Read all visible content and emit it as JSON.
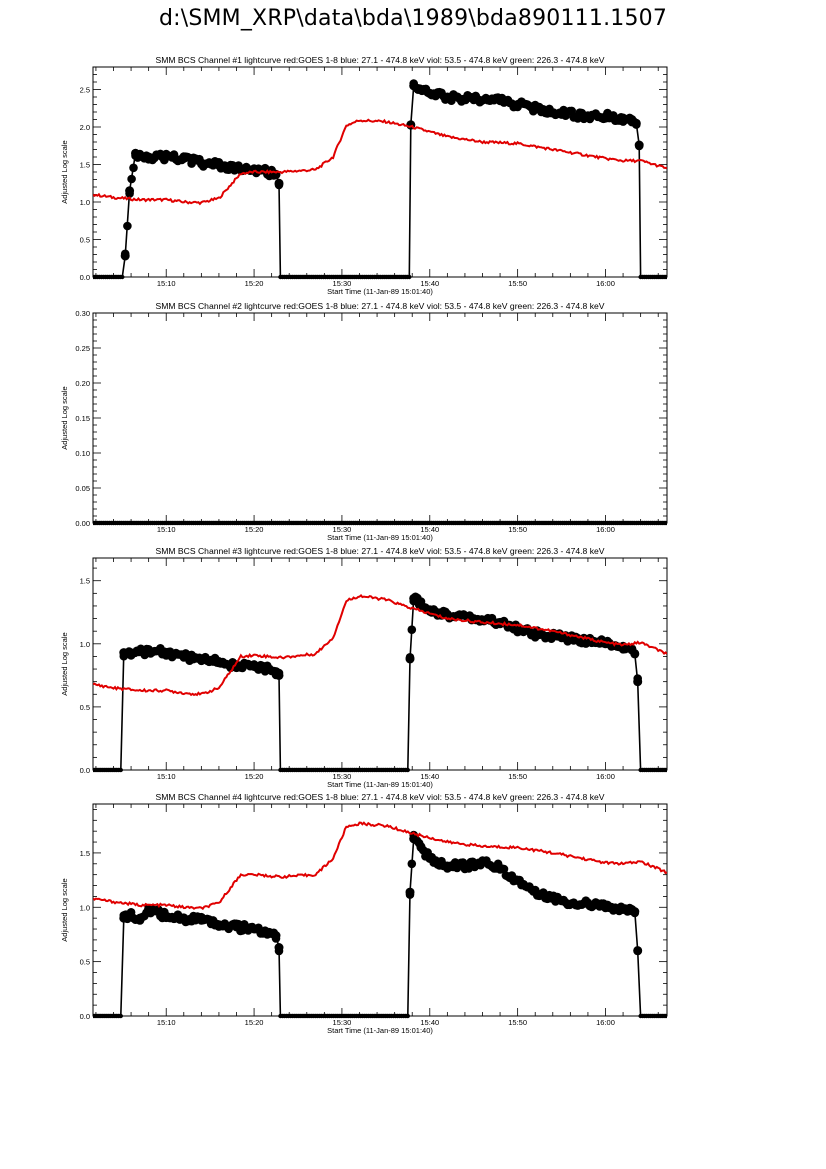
{
  "page_title": "d:\\SMM_XRP\\data\\bda\\1989\\bda890111.1507",
  "colors": {
    "goes": "#e00000",
    "bcs": "#000000"
  },
  "chart_data": [
    {
      "type": "line",
      "title": "SMM BCS Channel #1 lightcurve  red:GOES 1-8  blue: 27.1 - 474.8 keV  viol: 53.5 - 474.8 keV  green: 226.3 - 474.8 keV",
      "xlabel": "Start Time (11-Jan-89 15:01:40)",
      "ylabel": "Adjusted Log scale",
      "x_unit": "UT time",
      "xlim": [
        "15:01:40",
        "16:07:00"
      ],
      "ylim": [
        0,
        2.8
      ],
      "xticks": [
        "15:10",
        "15:20",
        "15:30",
        "15:40",
        "15:50",
        "16:00"
      ],
      "yticks": [
        0.0,
        0.5,
        1.0,
        1.5,
        2.0,
        2.5
      ],
      "ytick_labels": [
        "0.0",
        "0.5",
        "1.0",
        "1.5",
        "2.0",
        "2.5"
      ],
      "series": [
        {
          "color": "#000000",
          "style": "line+dots",
          "x": [
            "15:01:40",
            "15:05:00",
            "15:05:20",
            "15:05:50",
            "15:06:30",
            "15:07:00",
            "15:08:00",
            "15:10:00",
            "15:12:00",
            "15:14:00",
            "15:16:00",
            "15:18:00",
            "15:20:00",
            "15:21:30",
            "15:22:30",
            "15:22:50",
            "15:23:00",
            "15:30:00",
            "15:37:40",
            "15:37:50",
            "15:38:10",
            "15:38:40",
            "15:40:00",
            "15:42:00",
            "15:45:00",
            "15:48:00",
            "15:50:00",
            "15:52:00",
            "15:55:00",
            "15:58:00",
            "16:00:00",
            "16:02:00",
            "16:03:00",
            "16:03:30",
            "16:03:50",
            "16:04:00",
            "16:07:00"
          ],
          "y": [
            0,
            0,
            0.28,
            1.15,
            1.65,
            1.63,
            1.6,
            1.6,
            1.58,
            1.52,
            1.49,
            1.44,
            1.43,
            1.4,
            1.37,
            1.25,
            0,
            0,
            0,
            2.03,
            2.55,
            2.5,
            2.45,
            2.4,
            2.38,
            2.35,
            2.3,
            2.25,
            2.18,
            2.15,
            2.14,
            2.12,
            2.1,
            2.05,
            1.76,
            0,
            0
          ]
        },
        {
          "color": "#e00000",
          "style": "line",
          "x": [
            "15:01:40",
            "15:04:00",
            "15:07:00",
            "15:10:00",
            "15:12:00",
            "15:14:00",
            "15:16:00",
            "15:17:30",
            "15:18:30",
            "15:20:00",
            "15:23:00",
            "15:27:00",
            "15:29:00",
            "15:30:30",
            "15:32:00",
            "15:35:00",
            "15:38:00",
            "15:42:00",
            "15:46:00",
            "15:50:00",
            "15:54:00",
            "15:58:00",
            "16:00:00",
            "16:02:00",
            "16:04:00",
            "16:07:00"
          ],
          "y": [
            1.1,
            1.06,
            1.03,
            1.03,
            1.0,
            0.99,
            1.05,
            1.25,
            1.38,
            1.4,
            1.4,
            1.43,
            1.6,
            2.02,
            2.09,
            2.07,
            2.0,
            1.87,
            1.8,
            1.78,
            1.7,
            1.62,
            1.58,
            1.55,
            1.55,
            1.45
          ]
        }
      ]
    },
    {
      "type": "line",
      "title": "SMM BCS Channel #2 lightcurve  red:GOES 1-8  blue: 27.1 - 474.8 keV  viol: 53.5 - 474.8 keV  green: 226.3 - 474.8 keV",
      "xlabel": "Start Time (11-Jan-89 15:01:40)",
      "ylabel": "Adjusted Log scale",
      "x_unit": "UT time",
      "xlim": [
        "15:01:40",
        "16:07:00"
      ],
      "ylim": [
        0,
        0.3
      ],
      "xticks": [
        "15:10",
        "15:20",
        "15:30",
        "15:40",
        "15:50",
        "16:00"
      ],
      "yticks": [
        0.0,
        0.05,
        0.1,
        0.15,
        0.2,
        0.25,
        0.3
      ],
      "ytick_labels": [
        "0.00",
        "0.05",
        "0.10",
        "0.15",
        "0.20",
        "0.25",
        "0.30"
      ],
      "series": [
        {
          "color": "#000000",
          "style": "line+dots",
          "x": [
            "15:01:40",
            "16:07:00"
          ],
          "y": [
            0,
            0
          ]
        }
      ]
    },
    {
      "type": "line",
      "title": "SMM BCS Channel #3 lightcurve  red:GOES 1-8  blue: 27.1 - 474.8 keV  viol: 53.5 - 474.8 keV  green: 226.3 - 474.8 keV",
      "xlabel": "Start Time (11-Jan-89 15:01:40)",
      "ylabel": "Adjusted Log scale",
      "x_unit": "UT time",
      "xlim": [
        "15:01:40",
        "16:07:00"
      ],
      "ylim": [
        0,
        1.68
      ],
      "xticks": [
        "15:10",
        "15:20",
        "15:30",
        "15:40",
        "15:50",
        "16:00"
      ],
      "yticks": [
        0.0,
        0.5,
        1.0,
        1.5
      ],
      "ytick_labels": [
        "0.0",
        "0.5",
        "1.0",
        "1.5"
      ],
      "series": [
        {
          "color": "#000000",
          "style": "line+dots",
          "x": [
            "15:01:40",
            "15:04:50",
            "15:05:10",
            "15:06:00",
            "15:08:00",
            "15:10:00",
            "15:12:00",
            "15:14:00",
            "15:16:00",
            "15:18:00",
            "15:20:00",
            "15:21:30",
            "15:22:30",
            "15:22:50",
            "15:23:00",
            "15:30:00",
            "15:37:30",
            "15:37:45",
            "15:38:10",
            "15:39:00",
            "15:40:00",
            "15:42:00",
            "15:45:00",
            "15:48:00",
            "15:50:00",
            "15:52:00",
            "15:55:00",
            "15:58:00",
            "16:00:00",
            "16:02:00",
            "16:03:00",
            "16:03:20",
            "16:03:40",
            "16:04:00",
            "16:07:00"
          ],
          "y": [
            0,
            0,
            0.93,
            0.91,
            0.95,
            0.93,
            0.9,
            0.88,
            0.86,
            0.82,
            0.82,
            0.8,
            0.78,
            0.75,
            0,
            0,
            0,
            0.88,
            1.36,
            1.31,
            1.27,
            1.23,
            1.2,
            1.17,
            1.12,
            1.08,
            1.05,
            1.02,
            1.0,
            0.98,
            0.96,
            0.92,
            0.7,
            0,
            0
          ]
        },
        {
          "color": "#e00000",
          "style": "line",
          "x": [
            "15:01:40",
            "15:04:00",
            "15:07:00",
            "15:10:00",
            "15:12:00",
            "15:14:00",
            "15:16:00",
            "15:17:30",
            "15:18:30",
            "15:20:00",
            "15:23:00",
            "15:27:00",
            "15:29:00",
            "15:30:30",
            "15:32:00",
            "15:35:00",
            "15:38:00",
            "15:42:00",
            "15:46:00",
            "15:50:00",
            "15:54:00",
            "15:58:00",
            "16:00:00",
            "16:02:00",
            "16:04:00",
            "16:07:00"
          ],
          "y": [
            0.68,
            0.65,
            0.63,
            0.63,
            0.61,
            0.6,
            0.65,
            0.8,
            0.9,
            0.91,
            0.89,
            0.92,
            1.05,
            1.34,
            1.38,
            1.35,
            1.28,
            1.2,
            1.17,
            1.15,
            1.1,
            1.04,
            1.01,
            0.99,
            1.01,
            0.92
          ]
        }
      ]
    },
    {
      "type": "line",
      "title": "SMM BCS Channel #4 lightcurve  red:GOES 1-8  blue: 27.1 - 474.8 keV  viol: 53.5 - 474.8 keV  green: 226.3 - 474.8 keV",
      "xlabel": "Start Time (11-Jan-89 15:01:40)",
      "ylabel": "Adjusted Log scale",
      "x_unit": "UT time",
      "xlim": [
        "15:01:40",
        "16:07:00"
      ],
      "ylim": [
        0,
        1.95
      ],
      "xticks": [
        "15:10",
        "15:20",
        "15:30",
        "15:40",
        "15:50",
        "16:00"
      ],
      "yticks": [
        0.0,
        0.5,
        1.0,
        1.5
      ],
      "ytick_labels": [
        "0.0",
        "0.5",
        "1.0",
        "1.5"
      ],
      "series": [
        {
          "color": "#000000",
          "style": "line+dots",
          "x": [
            "15:01:40",
            "15:04:50",
            "15:05:10",
            "15:06:00",
            "15:07:00",
            "15:08:00",
            "15:10:00",
            "15:12:00",
            "15:14:00",
            "15:16:00",
            "15:18:00",
            "15:20:00",
            "15:21:30",
            "15:22:30",
            "15:22:50",
            "15:23:00",
            "15:30:00",
            "15:37:30",
            "15:37:45",
            "15:38:10",
            "15:39:00",
            "15:40:00",
            "15:42:00",
            "15:44:00",
            "15:46:00",
            "15:48:00",
            "15:50:00",
            "15:52:00",
            "15:55:00",
            "15:58:00",
            "16:00:00",
            "16:02:00",
            "16:03:00",
            "16:03:20",
            "16:03:40",
            "16:04:00",
            "16:07:00"
          ],
          "y": [
            0,
            0,
            0.9,
            0.92,
            0.88,
            0.98,
            0.92,
            0.9,
            0.88,
            0.84,
            0.82,
            0.8,
            0.76,
            0.74,
            0.63,
            0,
            0,
            0,
            1.14,
            1.63,
            1.55,
            1.45,
            1.38,
            1.38,
            1.42,
            1.36,
            1.25,
            1.15,
            1.06,
            1.03,
            1.0,
            0.98,
            0.98,
            0.96,
            0.6,
            0,
            0
          ]
        },
        {
          "color": "#e00000",
          "style": "line",
          "x": [
            "15:01:40",
            "15:04:00",
            "15:07:00",
            "15:10:00",
            "15:12:00",
            "15:14:00",
            "15:16:00",
            "15:17:30",
            "15:18:30",
            "15:20:00",
            "15:23:00",
            "15:27:00",
            "15:29:00",
            "15:30:30",
            "15:32:00",
            "15:35:00",
            "15:38:00",
            "15:42:00",
            "15:46:00",
            "15:50:00",
            "15:54:00",
            "15:58:00",
            "16:00:00",
            "16:02:00",
            "16:04:00",
            "16:07:00"
          ],
          "y": [
            1.08,
            1.05,
            1.02,
            1.02,
            1.0,
            0.99,
            1.04,
            1.2,
            1.3,
            1.3,
            1.28,
            1.3,
            1.45,
            1.74,
            1.77,
            1.75,
            1.68,
            1.6,
            1.56,
            1.55,
            1.5,
            1.44,
            1.41,
            1.4,
            1.42,
            1.32
          ]
        }
      ]
    }
  ]
}
